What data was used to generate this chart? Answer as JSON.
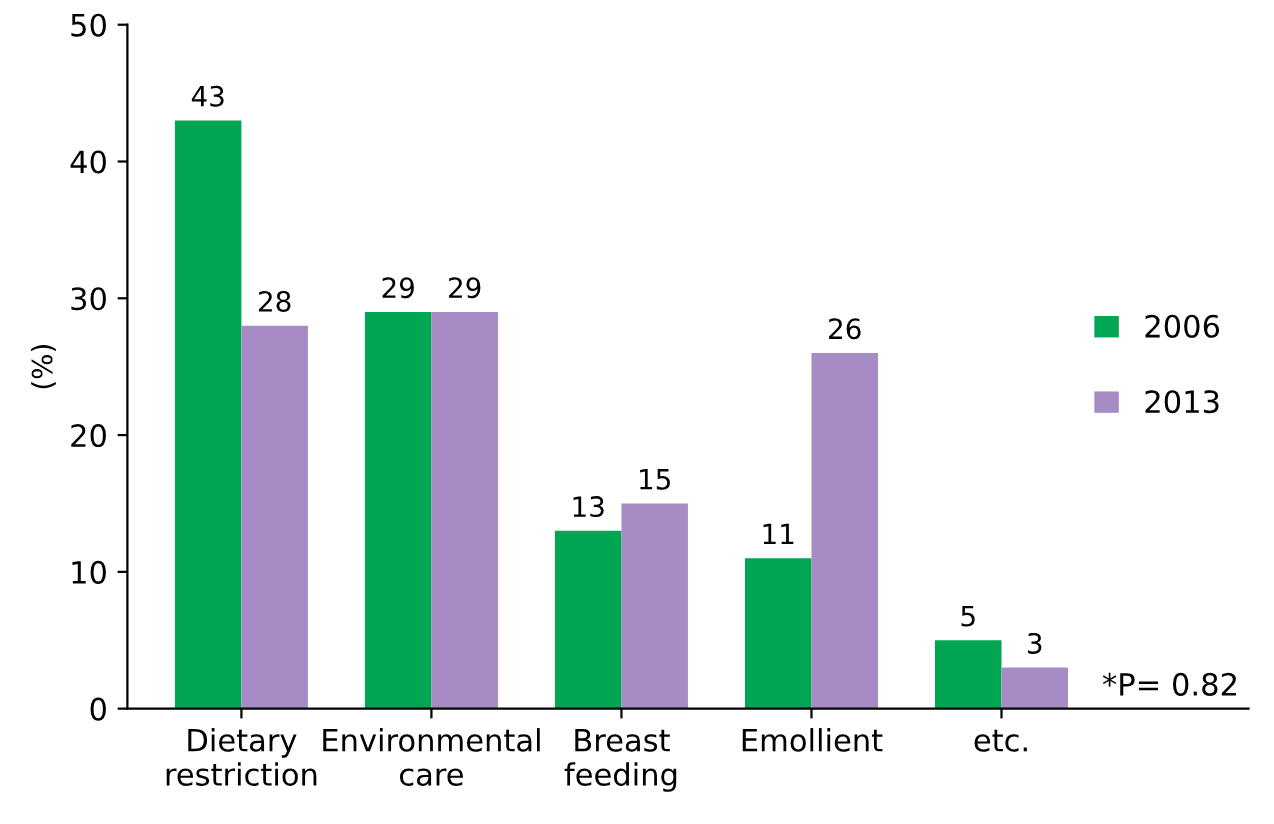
{
  "chart_data": {
    "type": "bar",
    "ylabel": "(%)",
    "categories": [
      "Dietary\nrestriction",
      "Environmental\ncare",
      "Breast\nfeeding",
      "Emollient",
      "etc."
    ],
    "series": [
      {
        "name": "2006",
        "color": "#00a651",
        "values": [
          43,
          29,
          13,
          11,
          5
        ]
      },
      {
        "name": "2013",
        "color": "#a68bc4",
        "values": [
          28,
          29,
          15,
          26,
          3
        ]
      }
    ],
    "ylim": [
      0,
      50
    ],
    "yticks": [
      0,
      10,
      20,
      30,
      40,
      50
    ],
    "grid": false,
    "legend": "right",
    "data_labels": true,
    "annotations": [
      "*P= 0.82"
    ]
  }
}
